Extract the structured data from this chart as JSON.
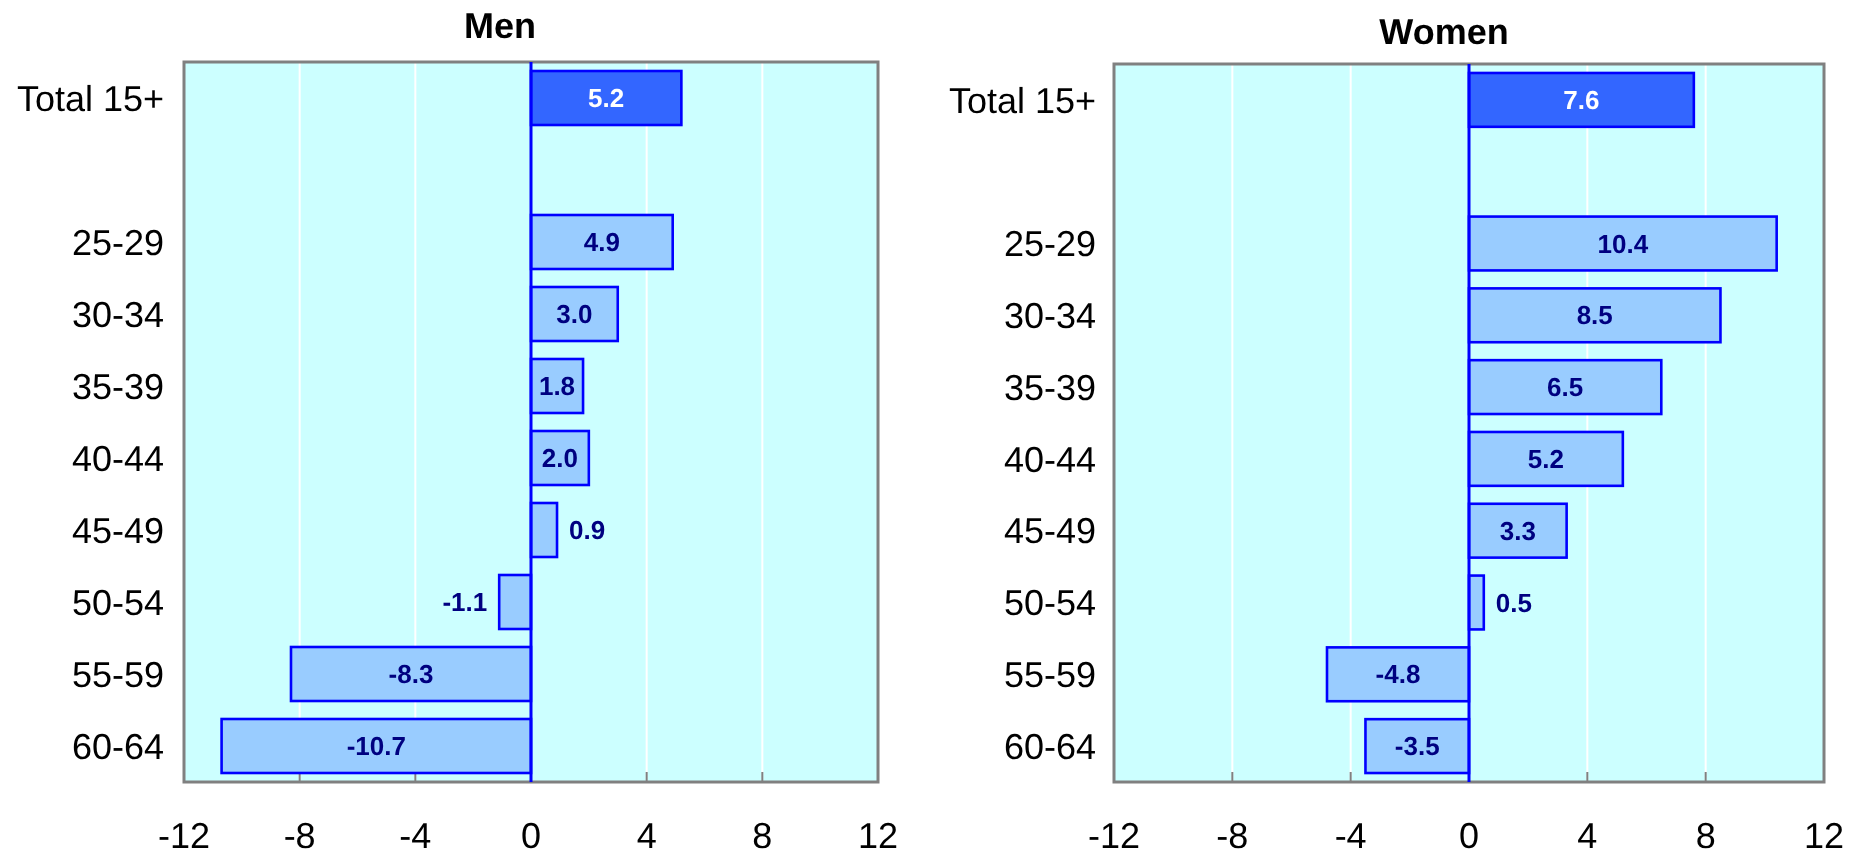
{
  "chart_data": [
    {
      "type": "bar",
      "orientation": "horizontal",
      "title": "Men",
      "categories": [
        "Total 15+",
        null,
        "25-29",
        "30-34",
        "35-39",
        "40-44",
        "45-49",
        "50-54",
        "55-59",
        "60-64"
      ],
      "values": [
        5.2,
        null,
        4.9,
        3.0,
        1.8,
        2.0,
        0.9,
        -1.1,
        -8.3,
        -10.7
      ],
      "value_labels": [
        "5.2",
        null,
        "4.9",
        "3.0",
        "1.8",
        "2.0",
        "0.9",
        "-1.1",
        "-8.3",
        "-10.7"
      ],
      "colors": [
        "#3366ff",
        null,
        "#99ccff",
        "#99ccff",
        "#99ccff",
        "#99ccff",
        "#99ccff",
        "#99ccff",
        "#99ccff",
        "#99ccff"
      ],
      "xlim": [
        -12,
        12
      ],
      "xticks": [
        -12,
        -8,
        -4,
        0,
        4,
        8,
        12
      ],
      "grid": "x",
      "ref_lines": [
        {
          "axis": "x",
          "value": 0,
          "color": "#0000ff"
        }
      ]
    },
    {
      "type": "bar",
      "orientation": "horizontal",
      "title": "Women",
      "categories": [
        "Total 15+",
        null,
        "25-29",
        "30-34",
        "35-39",
        "40-44",
        "45-49",
        "50-54",
        "55-59",
        "60-64"
      ],
      "values": [
        7.6,
        null,
        10.4,
        8.5,
        6.5,
        5.2,
        3.3,
        0.5,
        -4.8,
        -3.5
      ],
      "value_labels": [
        "7.6",
        null,
        "10.4",
        "8.5",
        "6.5",
        "5.2",
        "3.3",
        "0.5",
        "-4.8",
        "-3.5"
      ],
      "colors": [
        "#3366ff",
        null,
        "#99ccff",
        "#99ccff",
        "#99ccff",
        "#99ccff",
        "#99ccff",
        "#99ccff",
        "#99ccff",
        "#99ccff"
      ],
      "xlim": [
        -12,
        12
      ],
      "xticks": [
        -12,
        -8,
        -4,
        0,
        4,
        8,
        12
      ],
      "grid": "x",
      "ref_lines": [
        {
          "axis": "x",
          "value": 0,
          "color": "#0000ff"
        }
      ]
    }
  ]
}
